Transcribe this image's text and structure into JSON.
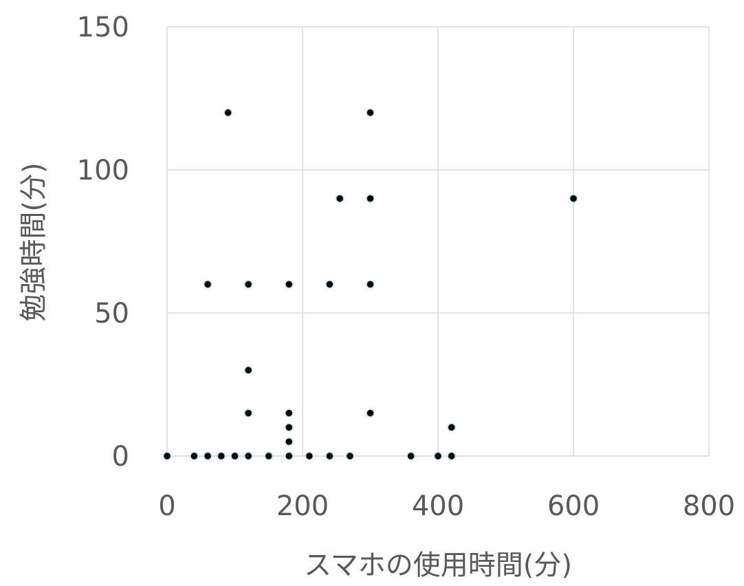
{
  "chart_data": {
    "type": "scatter",
    "title": "",
    "xlabel": "スマホの使用時間(分)",
    "ylabel": "勉強時間(分)",
    "xlim": [
      0,
      800
    ],
    "ylim": [
      0,
      150
    ],
    "xticks": [
      0,
      200,
      400,
      600,
      800
    ],
    "yticks": [
      0,
      50,
      100,
      150
    ],
    "xtick_labels": [
      "0",
      "200",
      "400",
      "600",
      "800"
    ],
    "ytick_labels": [
      "0",
      "50",
      "100",
      "150"
    ],
    "grid": true,
    "legend": "none",
    "colors": {
      "marker_fill": "#000000",
      "marker_stroke": "#bfe3ec",
      "grid": "#d9d9d9",
      "axis": "#d9d9d9",
      "text": "#595959"
    },
    "series": [
      {
        "points": [
          {
            "x": 0,
            "y": 0
          },
          {
            "x": 40,
            "y": 0
          },
          {
            "x": 60,
            "y": 0
          },
          {
            "x": 80,
            "y": 0
          },
          {
            "x": 100,
            "y": 0
          },
          {
            "x": 120,
            "y": 0
          },
          {
            "x": 150,
            "y": 0
          },
          {
            "x": 180,
            "y": 0
          },
          {
            "x": 210,
            "y": 0
          },
          {
            "x": 240,
            "y": 0
          },
          {
            "x": 270,
            "y": 0
          },
          {
            "x": 360,
            "y": 0
          },
          {
            "x": 400,
            "y": 0
          },
          {
            "x": 420,
            "y": 0
          },
          {
            "x": 180,
            "y": 5
          },
          {
            "x": 180,
            "y": 10
          },
          {
            "x": 420,
            "y": 10
          },
          {
            "x": 120,
            "y": 15
          },
          {
            "x": 180,
            "y": 15
          },
          {
            "x": 300,
            "y": 15
          },
          {
            "x": 120,
            "y": 30
          },
          {
            "x": 60,
            "y": 60
          },
          {
            "x": 120,
            "y": 60
          },
          {
            "x": 180,
            "y": 60
          },
          {
            "x": 240,
            "y": 60
          },
          {
            "x": 300,
            "y": 60
          },
          {
            "x": 255,
            "y": 90
          },
          {
            "x": 300,
            "y": 90
          },
          {
            "x": 600,
            "y": 90
          },
          {
            "x": 90,
            "y": 120
          },
          {
            "x": 300,
            "y": 120
          }
        ]
      }
    ]
  }
}
